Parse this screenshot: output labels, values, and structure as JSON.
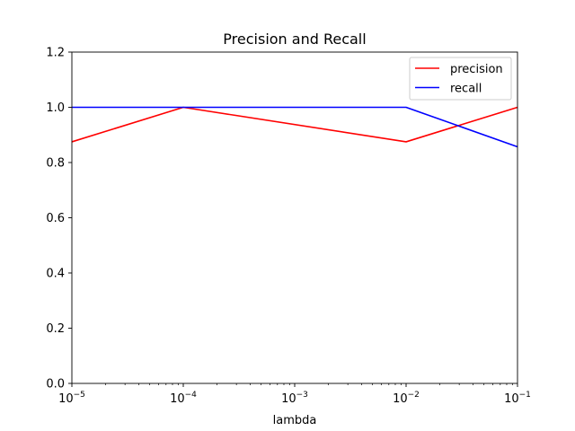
{
  "chart_data": {
    "type": "line",
    "title": "Precision and Recall",
    "xlabel": "lambda",
    "ylabel": "",
    "x_scale": "log",
    "x": [
      1e-05,
      0.0001,
      0.01,
      0.1
    ],
    "xlim": [
      1e-05,
      0.1
    ],
    "ylim": [
      0.0,
      1.2
    ],
    "x_ticks": [
      {
        "value": 1e-05,
        "base": "10",
        "exp": "−5"
      },
      {
        "value": 0.0001,
        "base": "10",
        "exp": "−4"
      },
      {
        "value": 0.001,
        "base": "10",
        "exp": "−3"
      },
      {
        "value": 0.01,
        "base": "10",
        "exp": "−2"
      },
      {
        "value": 0.1,
        "base": "10",
        "exp": "−1"
      }
    ],
    "y_ticks": [
      "0.0",
      "0.2",
      "0.4",
      "0.6",
      "0.8",
      "1.0",
      "1.2"
    ],
    "grid": false,
    "legend_position": "top-right",
    "series": [
      {
        "name": "precision",
        "color": "#ff0000",
        "values": [
          0.875,
          1.0,
          0.875,
          1.0
        ]
      },
      {
        "name": "recall",
        "color": "#0000ff",
        "values": [
          1.0,
          1.0,
          1.0,
          0.857
        ]
      }
    ]
  }
}
